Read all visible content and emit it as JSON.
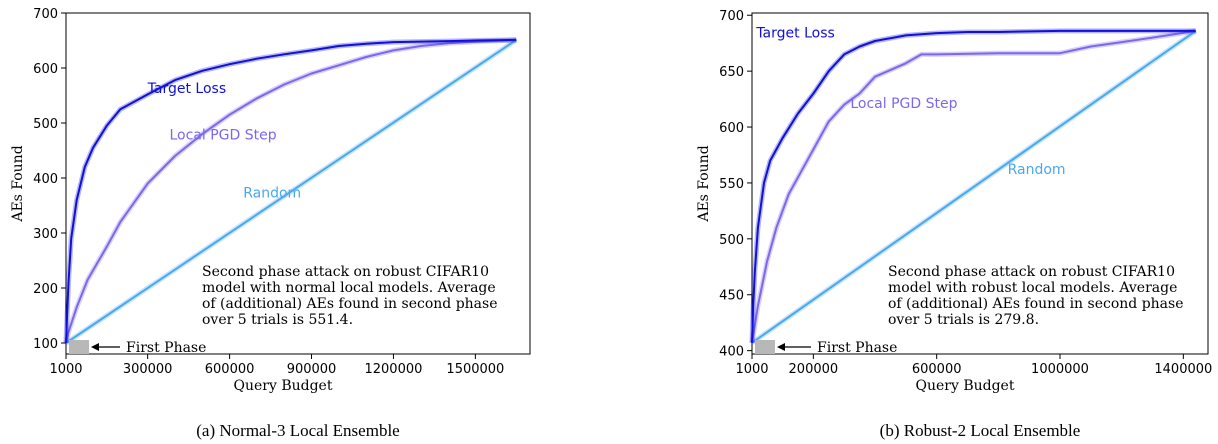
{
  "chart_data": [
    {
      "type": "line",
      "caption": "(a) Normal-3 Local Ensemble",
      "xlabel": "Query Budget",
      "ylabel": "AEs Found",
      "xlim": [
        1000,
        1700000
      ],
      "ylim": [
        80,
        700
      ],
      "xticks": [
        1000,
        300000,
        600000,
        900000,
        1200000,
        1500000
      ],
      "xtick_labels": [
        "1000",
        "300000",
        "600000",
        "900000",
        "1200000",
        "1500000"
      ],
      "yticks": [
        100,
        200,
        300,
        400,
        500,
        600,
        700
      ],
      "ytick_labels": [
        "100",
        "200",
        "300",
        "400",
        "500",
        "600",
        "700"
      ],
      "annotation": [
        "Second phase attack on robust CIFAR10",
        "model with normal local models. Average",
        "of (additional) AEs found in second phase",
        "over 5 trials is 551.4."
      ],
      "first_phase_label": "First Phase",
      "series": [
        {
          "name": "Target Loss",
          "color": "#1010d8",
          "label_at": [
            300000,
            555
          ],
          "points": [
            [
              1000,
              100
            ],
            [
              5000,
              150
            ],
            [
              10000,
              210
            ],
            [
              20000,
              290
            ],
            [
              40000,
              360
            ],
            [
              70000,
              420
            ],
            [
              100000,
              455
            ],
            [
              150000,
              495
            ],
            [
              200000,
              525
            ],
            [
              300000,
              552
            ],
            [
              400000,
              578
            ],
            [
              500000,
              595
            ],
            [
              600000,
              607
            ],
            [
              700000,
              617
            ],
            [
              800000,
              625
            ],
            [
              900000,
              632
            ],
            [
              1000000,
              640
            ],
            [
              1100000,
              644
            ],
            [
              1200000,
              647
            ],
            [
              1300000,
              648
            ],
            [
              1400000,
              649
            ],
            [
              1500000,
              650
            ],
            [
              1650000,
              651
            ]
          ]
        },
        {
          "name": "Local PGD Step",
          "color": "#7b68ee",
          "label_at": [
            380000,
            470
          ],
          "points": [
            [
              1000,
              100
            ],
            [
              10000,
              120
            ],
            [
              40000,
              165
            ],
            [
              80000,
              215
            ],
            [
              150000,
              275
            ],
            [
              200000,
              320
            ],
            [
              300000,
              390
            ],
            [
              400000,
              440
            ],
            [
              500000,
              480
            ],
            [
              600000,
              515
            ],
            [
              700000,
              545
            ],
            [
              800000,
              570
            ],
            [
              900000,
              590
            ],
            [
              1000000,
              605
            ],
            [
              1100000,
              620
            ],
            [
              1200000,
              632
            ],
            [
              1300000,
              640
            ],
            [
              1400000,
              645
            ],
            [
              1500000,
              648
            ],
            [
              1650000,
              651
            ]
          ]
        },
        {
          "name": "Random",
          "color": "#4aa8f0",
          "label_at": [
            650000,
            365
          ],
          "points": [
            [
              1000,
              100
            ],
            [
              1650000,
              651
            ]
          ]
        }
      ]
    },
    {
      "type": "line",
      "caption": "(b) Robust-2 Local Ensemble",
      "xlabel": "Query Budget",
      "ylabel": "AEs Found",
      "xlim": [
        1000,
        1480000
      ],
      "ylim": [
        397,
        702
      ],
      "xticks": [
        1000,
        200000,
        600000,
        1000000,
        1400000
      ],
      "xtick_labels": [
        "1000",
        "200000",
        "600000",
        "1000000",
        "1400000"
      ],
      "yticks": [
        400,
        450,
        500,
        550,
        600,
        650,
        700
      ],
      "ytick_labels": [
        "400",
        "450",
        "500",
        "550",
        "600",
        "650",
        "700"
      ],
      "annotation": [
        "Second phase attack on robust CIFAR10",
        "model with robust local models. Average",
        "of (additional) AEs found in second phase",
        "over 5 trials is 279.8."
      ],
      "first_phase_label": "First Phase",
      "series": [
        {
          "name": "Target Loss",
          "color": "#1010d8",
          "label_at": [
            15000,
            680
          ],
          "points": [
            [
              1000,
              407
            ],
            [
              5000,
              440
            ],
            [
              10000,
              470
            ],
            [
              20000,
              510
            ],
            [
              40000,
              550
            ],
            [
              60000,
              570
            ],
            [
              100000,
              590
            ],
            [
              150000,
              612
            ],
            [
              200000,
              630
            ],
            [
              250000,
              650
            ],
            [
              300000,
              665
            ],
            [
              350000,
              672
            ],
            [
              400000,
              677
            ],
            [
              500000,
              682
            ],
            [
              600000,
              684
            ],
            [
              700000,
              685
            ],
            [
              800000,
              685
            ],
            [
              1000000,
              686
            ],
            [
              1200000,
              686
            ],
            [
              1440000,
              686
            ]
          ]
        },
        {
          "name": "Local PGD Step",
          "color": "#7b68ee",
          "label_at": [
            320000,
            617
          ],
          "points": [
            [
              1000,
              407
            ],
            [
              20000,
              440
            ],
            [
              50000,
              480
            ],
            [
              80000,
              510
            ],
            [
              120000,
              540
            ],
            [
              160000,
              560
            ],
            [
              200000,
              580
            ],
            [
              250000,
              605
            ],
            [
              300000,
              620
            ],
            [
              350000,
              630
            ],
            [
              400000,
              645
            ],
            [
              500000,
              657
            ],
            [
              550000,
              665
            ],
            [
              600000,
              665
            ],
            [
              800000,
              666
            ],
            [
              1000000,
              666
            ],
            [
              1100000,
              672
            ],
            [
              1200000,
              676
            ],
            [
              1300000,
              680
            ],
            [
              1440000,
              686
            ]
          ]
        },
        {
          "name": "Random",
          "color": "#4aa8f0",
          "label_at": [
            830000,
            558
          ],
          "points": [
            [
              1000,
              407
            ],
            [
              1440000,
              686
            ]
          ]
        }
      ]
    }
  ]
}
